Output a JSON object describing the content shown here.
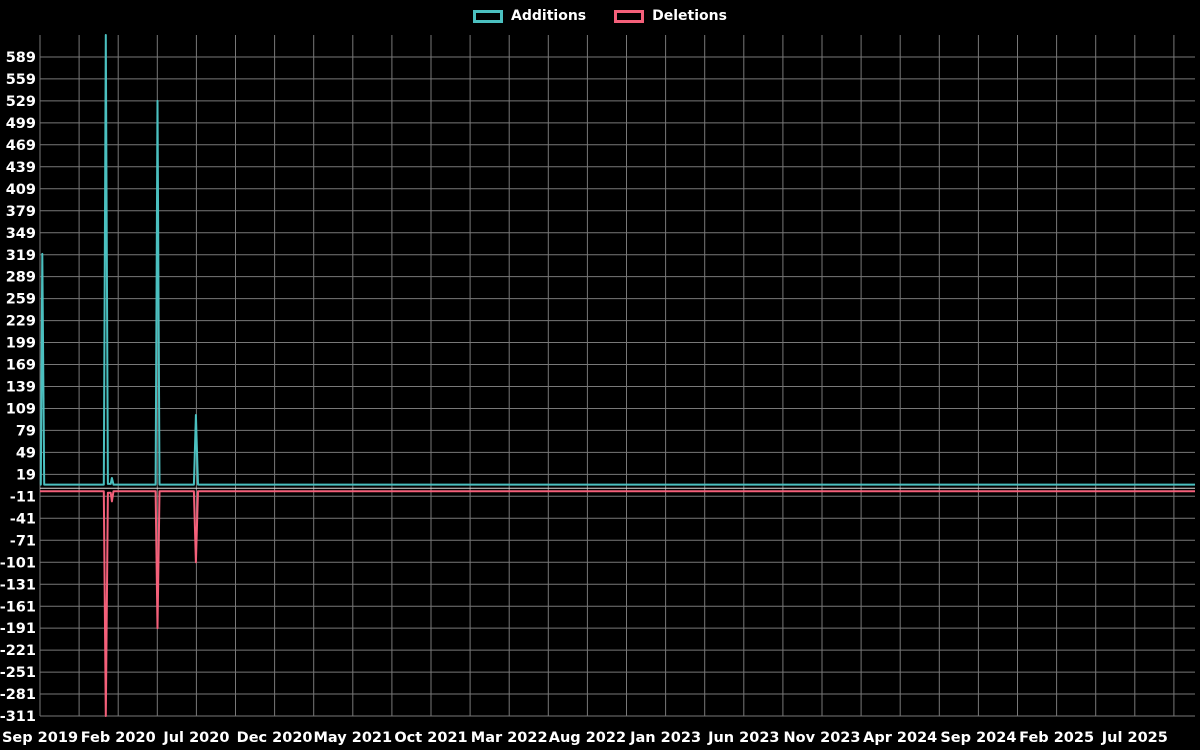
{
  "legend": {
    "items": [
      {
        "label": "Additions",
        "color": "#4bc0c0"
      },
      {
        "label": "Deletions",
        "color": "#f4607a"
      }
    ]
  },
  "chart_data": {
    "type": "line",
    "title": "",
    "background": "#000000",
    "grid": {
      "color": "#787878",
      "zero_color": "#d9d9d9",
      "grid_on": true
    },
    "legend_position": "top-center",
    "x_axis": {
      "labels": [
        "Sep 2019",
        "Feb 2020",
        "Jul 2020",
        "Dec 2020",
        "May 2021",
        "Oct 2021",
        "Mar 2022",
        "Aug 2022",
        "Jan 2023",
        "Jun 2023",
        "Nov 2023",
        "Apr 2024",
        "Sep 2024",
        "Feb 2025",
        "Jul 2025"
      ],
      "label_month_positions": [
        0,
        5,
        10,
        15,
        20,
        25,
        30,
        35,
        40,
        45,
        50,
        55,
        60,
        65,
        70
      ],
      "minor_grid_step_months": 2.5,
      "month_min": 0,
      "month_max": 73.85
    },
    "y_axis": {
      "min": -311,
      "max": 619,
      "tick_step": 30,
      "ticks": [
        589,
        559,
        529,
        499,
        469,
        439,
        409,
        379,
        349,
        319,
        289,
        259,
        229,
        199,
        169,
        139,
        109,
        79,
        49,
        19,
        -11,
        -41,
        -71,
        -101,
        -131,
        -161,
        -191,
        -221,
        -251,
        -281,
        -311
      ]
    },
    "series": [
      {
        "name": "Additions",
        "color": "#4bc0c0",
        "points": [
          [
            0,
            5
          ],
          [
            0.05,
            5
          ],
          [
            0.15,
            320
          ],
          [
            0.27,
            5
          ],
          [
            4.08,
            5
          ],
          [
            4.21,
            619
          ],
          [
            4.34,
            6
          ],
          [
            4.52,
            6
          ],
          [
            4.6,
            14
          ],
          [
            4.7,
            5
          ],
          [
            7.39,
            5
          ],
          [
            7.51,
            529
          ],
          [
            7.64,
            5
          ],
          [
            9.84,
            5
          ],
          [
            9.97,
            100
          ],
          [
            10.1,
            5
          ],
          [
            73.85,
            5
          ]
        ]
      },
      {
        "name": "Deletions",
        "color": "#f4607a",
        "points": [
          [
            0,
            -4
          ],
          [
            4.08,
            -4
          ],
          [
            4.21,
            -311
          ],
          [
            4.34,
            -6
          ],
          [
            4.52,
            -6
          ],
          [
            4.6,
            -18
          ],
          [
            4.7,
            -4
          ],
          [
            7.39,
            -4
          ],
          [
            7.51,
            -191
          ],
          [
            7.64,
            -4
          ],
          [
            9.84,
            -4
          ],
          [
            9.97,
            -101
          ],
          [
            10.1,
            -4
          ],
          [
            73.85,
            -4
          ]
        ]
      }
    ]
  }
}
